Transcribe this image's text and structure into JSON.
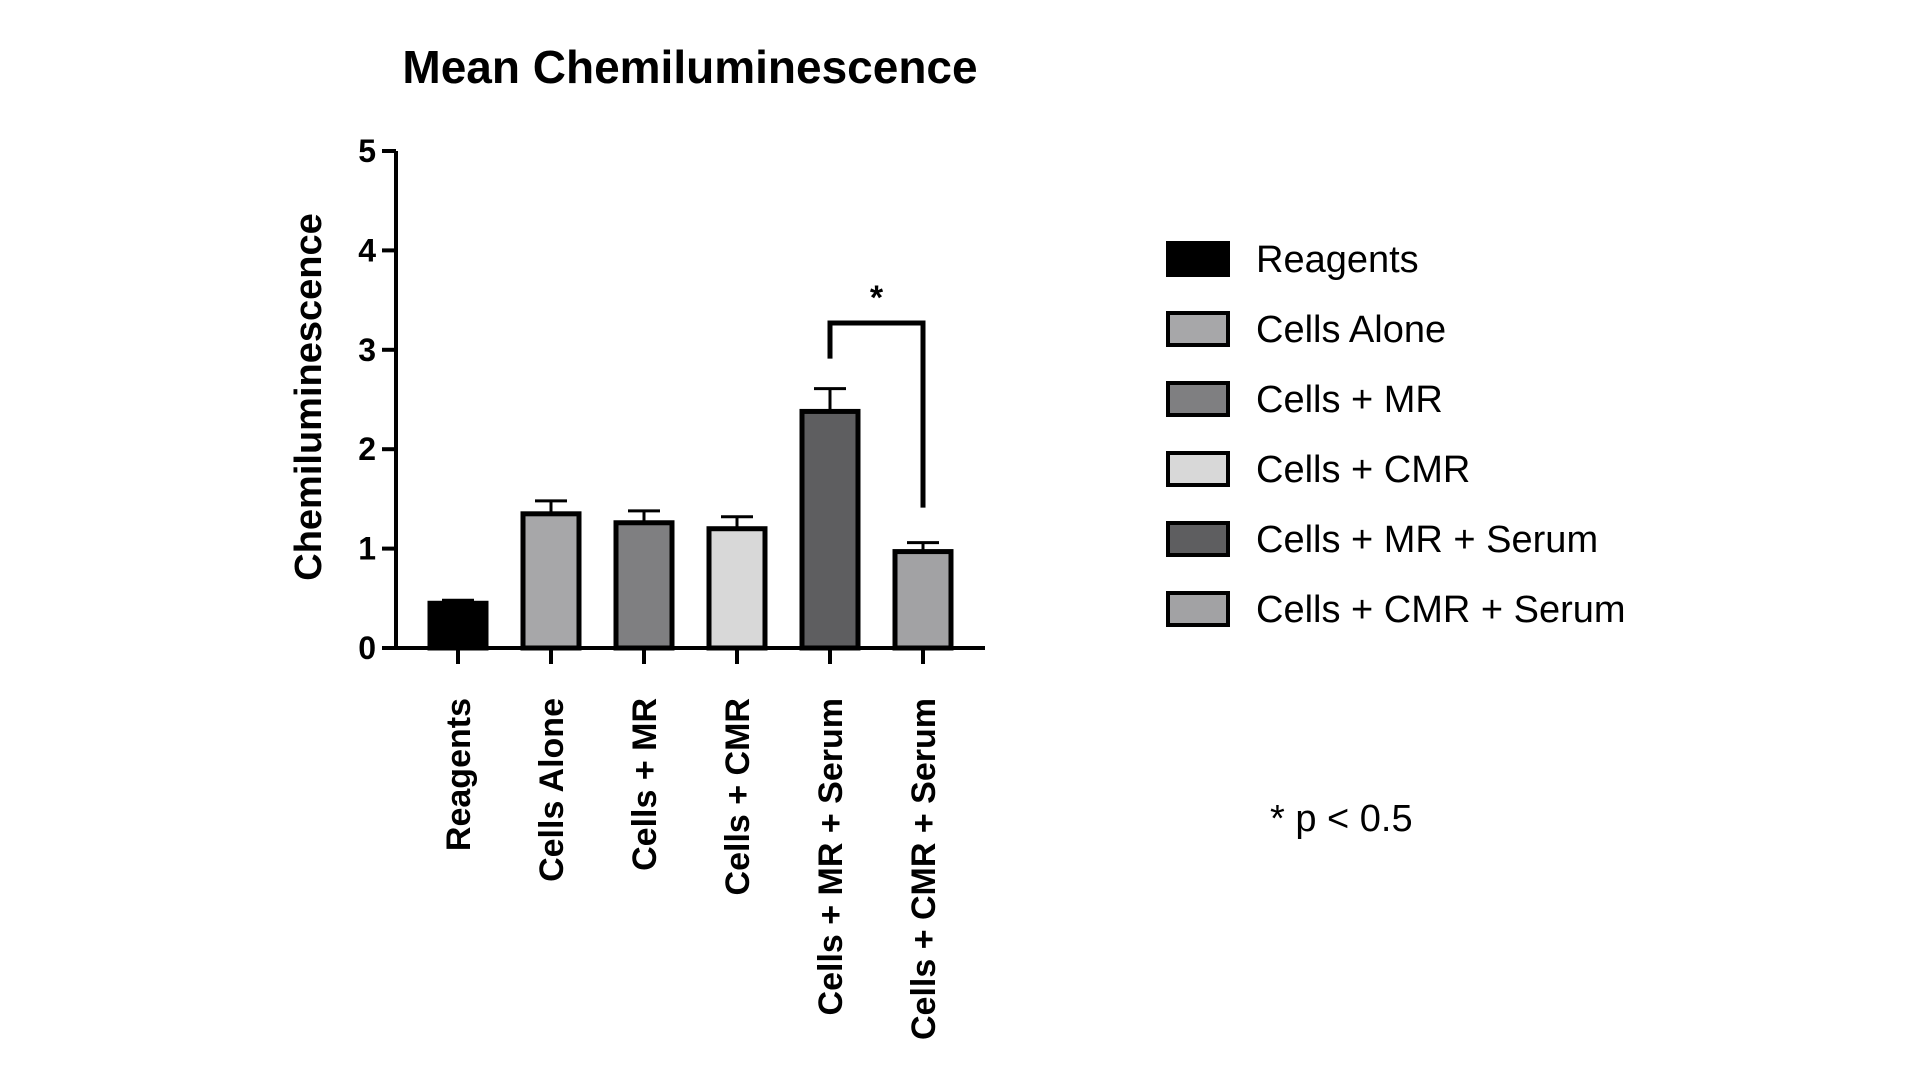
{
  "chart_data": {
    "type": "bar",
    "title": "Mean Chemiluminescence",
    "ylabel": "Chemiluminescence",
    "xlabel": "",
    "ylim": [
      0,
      5
    ],
    "yticks": [
      "0",
      "1",
      "2",
      "3",
      "4",
      "5"
    ],
    "categories": [
      "Reagents",
      "Cells Alone",
      "Cells + MR",
      "Cells  + CMR",
      "Cells + MR + Serum",
      "Cells + CMR + Serum"
    ],
    "values": [
      0.45,
      1.35,
      1.26,
      1.2,
      2.38,
      0.97
    ],
    "errors": [
      0.03,
      0.13,
      0.12,
      0.12,
      0.23,
      0.09
    ],
    "colors": [
      "#000000",
      "#a7a7a9",
      "#7f7f81",
      "#d8d8d8",
      "#5e5e60",
      "#a2a2a4"
    ],
    "legend": {
      "placement": "right",
      "entries": [
        "Reagents",
        "Cells Alone",
        "Cells + MR",
        "Cells  + CMR",
        "Cells + MR + Serum",
        "Cells + CMR + Serum"
      ]
    },
    "annotations": {
      "significance_marker": "*",
      "significance_between": [
        "Cells + MR + Serum",
        "Cells + CMR + Serum"
      ],
      "footnote": "* p < 0.5"
    },
    "grid": false
  }
}
